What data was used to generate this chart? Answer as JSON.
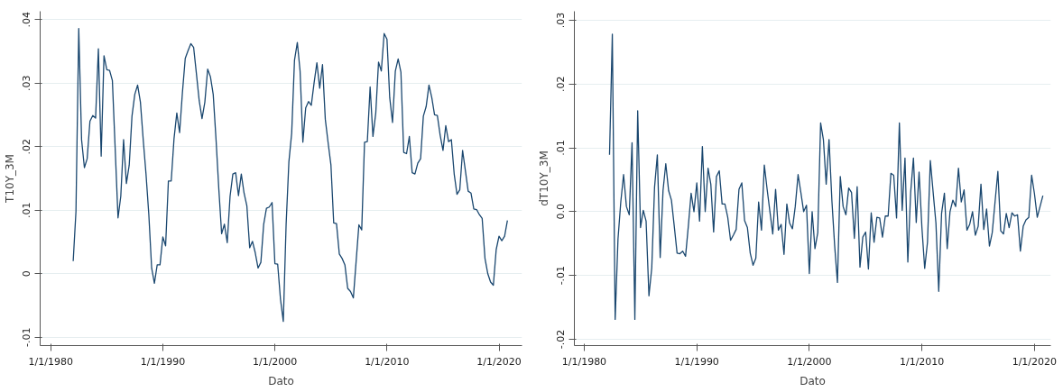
{
  "chart_data": [
    {
      "type": "line",
      "xlabel": "Dato",
      "ylabel": "T10Y_3M",
      "grid": "y",
      "line_style": "solid",
      "xlim": [
        "1979-01-20",
        "2022-01-20"
      ],
      "xticks": [
        {
          "value": "1980-01-01",
          "label": "1/1/1980"
        },
        {
          "value": "1990-01-01",
          "label": "1/1/1990"
        },
        {
          "value": "2000-01-01",
          "label": "1/1/2000"
        },
        {
          "value": "2010-01-01",
          "label": "1/1/2010"
        },
        {
          "value": "2020-01-01",
          "label": "1/1/2020"
        }
      ],
      "ylim": [
        -0.0113,
        0.0413
      ],
      "yticks": [
        {
          "value": -0.01,
          "label": "-.01"
        },
        0,
        {
          "value": 0.01,
          "label": ".01"
        },
        {
          "value": 0.02,
          "label": ".02"
        },
        {
          "value": 0.03,
          "label": ".03"
        },
        {
          "value": 0.04,
          "label": ".04"
        }
      ],
      "series": [
        {
          "color": "#1a476f",
          "x": [
            "1982-01",
            "1982-04",
            "1982-07",
            "1982-10",
            "1983-01",
            "1983-04",
            "1983-07",
            "1983-10",
            "1984-01",
            "1984-04",
            "1984-07",
            "1984-10",
            "1985-01",
            "1985-04",
            "1985-07",
            "1985-10",
            "1986-01",
            "1986-04",
            "1986-07",
            "1986-10",
            "1987-01",
            "1987-04",
            "1987-07",
            "1987-10",
            "1988-01",
            "1988-04",
            "1988-07",
            "1988-10",
            "1989-01",
            "1989-04",
            "1989-07",
            "1989-10",
            "1990-01",
            "1990-04",
            "1990-07",
            "1990-10",
            "1991-01",
            "1991-04",
            "1991-07",
            "1991-10",
            "1992-01",
            "1992-04",
            "1992-07",
            "1992-10",
            "1993-01",
            "1993-04",
            "1993-07",
            "1993-10",
            "1994-01",
            "1994-04",
            "1994-07",
            "1994-10",
            "1995-01",
            "1995-04",
            "1995-07",
            "1995-10",
            "1996-01",
            "1996-04",
            "1996-07",
            "1996-10",
            "1997-01",
            "1997-04",
            "1997-07",
            "1997-10",
            "1998-01",
            "1998-04",
            "1998-07",
            "1998-10",
            "1999-01",
            "1999-04",
            "1999-07",
            "1999-10",
            "2000-01",
            "2000-04",
            "2000-07",
            "2000-10",
            "2001-01",
            "2001-04",
            "2001-07",
            "2001-10",
            "2002-01",
            "2002-04",
            "2002-07",
            "2002-10",
            "2003-01",
            "2003-04",
            "2003-07",
            "2003-10",
            "2004-01",
            "2004-04",
            "2004-07",
            "2004-10",
            "2005-01",
            "2005-04",
            "2005-07",
            "2005-10",
            "2006-01",
            "2006-04",
            "2006-07",
            "2006-10",
            "2007-01",
            "2007-04",
            "2007-07",
            "2007-10",
            "2008-01",
            "2008-04",
            "2008-07",
            "2008-10",
            "2009-01",
            "2009-04",
            "2009-07",
            "2009-10",
            "2010-01",
            "2010-04",
            "2010-07",
            "2010-10",
            "2011-01",
            "2011-04",
            "2011-07",
            "2011-10",
            "2012-01",
            "2012-04",
            "2012-07",
            "2012-10",
            "2013-01",
            "2013-04",
            "2013-07",
            "2013-10",
            "2014-01",
            "2014-04",
            "2014-07",
            "2014-10",
            "2015-01",
            "2015-04",
            "2015-07",
            "2015-10",
            "2016-01",
            "2016-04",
            "2016-07",
            "2016-10",
            "2017-01",
            "2017-04",
            "2017-07",
            "2017-10",
            "2018-01",
            "2018-04",
            "2018-07",
            "2018-10",
            "2019-01",
            "2019-04",
            "2019-07",
            "2019-10",
            "2020-01",
            "2020-04",
            "2020-07",
            "2020-10"
          ],
          "values": [
            0.002,
            0.0098,
            0.0386,
            0.0211,
            0.0167,
            0.0181,
            0.024,
            0.0249,
            0.0245,
            0.0354,
            0.0185,
            0.0343,
            0.0321,
            0.032,
            0.0304,
            0.0196,
            0.0088,
            0.0122,
            0.0211,
            0.0142,
            0.0171,
            0.0248,
            0.0282,
            0.0297,
            0.027,
            0.0211,
            0.0157,
            0.0093,
            0.0009,
            -0.0015,
            0.0014,
            0.0014,
            0.0058,
            0.0044,
            0.0146,
            0.0146,
            0.0213,
            0.0253,
            0.0222,
            0.0285,
            0.0339,
            0.0351,
            0.0362,
            0.0356,
            0.0314,
            0.0272,
            0.0244,
            0.027,
            0.0322,
            0.031,
            0.0282,
            0.0211,
            0.0132,
            0.0063,
            0.0078,
            0.0049,
            0.0122,
            0.0157,
            0.0159,
            0.0123,
            0.0157,
            0.0127,
            0.0107,
            0.0041,
            0.0051,
            0.0033,
            0.0009,
            0.0018,
            0.0078,
            0.0103,
            0.0105,
            0.0112,
            0.0016,
            0.0015,
            -0.004,
            -0.0075,
            0.0078,
            0.0176,
            0.0221,
            0.0336,
            0.0364,
            0.0319,
            0.0207,
            0.0261,
            0.0271,
            0.0265,
            0.03,
            0.0332,
            0.0292,
            0.0329,
            0.0243,
            0.0206,
            0.0171,
            0.008,
            0.0079,
            0.0031,
            0.0024,
            0.0014,
            -0.0023,
            -0.0028,
            -0.0038,
            0.0019,
            0.0077,
            0.0069,
            0.0207,
            0.0208,
            0.0294,
            0.0216,
            0.0253,
            0.0333,
            0.0319,
            0.0378,
            0.0369,
            0.0277,
            0.0238,
            0.0319,
            0.0338,
            0.0317,
            0.0191,
            0.0189,
            0.0216,
            0.0159,
            0.0157,
            0.0174,
            0.0181,
            0.0248,
            0.0263,
            0.0297,
            0.0277,
            0.025,
            0.0249,
            0.0218,
            0.0194,
            0.0233,
            0.0208,
            0.0211,
            0.0157,
            0.0125,
            0.0132,
            0.0194,
            0.0162,
            0.013,
            0.0127,
            0.0102,
            0.0101,
            0.0093,
            0.0087,
            0.0024,
            0.0,
            -0.0013,
            -0.0018,
            0.0038,
            0.0059,
            0.0052,
            0.0059,
            0.0084
          ]
        }
      ]
    },
    {
      "type": "line",
      "xlabel": "Dato",
      "ylabel": "dT10Y_3M",
      "grid": "y",
      "line_style": "solid",
      "xlim": [
        "1979-02-15",
        "2021-06-15"
      ],
      "xticks": [
        {
          "value": "1980-01-01",
          "label": "1/1/1980"
        },
        {
          "value": "1990-01-01",
          "label": "1/1/1990"
        },
        {
          "value": "2000-01-01",
          "label": "1/1/2000"
        },
        {
          "value": "2010-01-01",
          "label": "1/1/2010"
        },
        {
          "value": "2020-01-01",
          "label": "1/1/2020"
        }
      ],
      "ylim": [
        -0.021,
        0.0314
      ],
      "yticks": [
        {
          "value": -0.02,
          "label": "-.02"
        },
        {
          "value": -0.01,
          "label": "-.01"
        },
        {
          "value": 0,
          "label": "0.0"
        },
        {
          "value": 0.01,
          "label": ".01"
        },
        {
          "value": 0.02,
          "label": ".02"
        },
        {
          "value": 0.03,
          "label": ".03"
        }
      ],
      "series": [
        {
          "color": "#1a476f",
          "x": [
            "1982-04",
            "1982-07",
            "1982-10",
            "1983-01",
            "1983-04",
            "1983-07",
            "1983-10",
            "1984-01",
            "1984-04",
            "1984-07",
            "1984-10",
            "1985-01",
            "1985-04",
            "1985-07",
            "1985-10",
            "1986-01",
            "1986-04",
            "1986-07",
            "1986-10",
            "1987-01",
            "1987-04",
            "1987-07",
            "1987-10",
            "1988-01",
            "1988-04",
            "1988-07",
            "1988-10",
            "1989-01",
            "1989-04",
            "1989-07",
            "1989-10",
            "1990-01",
            "1990-04",
            "1990-07",
            "1990-10",
            "1991-01",
            "1991-04",
            "1991-07",
            "1991-10",
            "1992-01",
            "1992-04",
            "1992-07",
            "1992-10",
            "1993-01",
            "1993-04",
            "1993-07",
            "1993-10",
            "1994-01",
            "1994-04",
            "1994-07",
            "1994-10",
            "1995-01",
            "1995-04",
            "1995-07",
            "1995-10",
            "1996-01",
            "1996-04",
            "1996-07",
            "1996-10",
            "1997-01",
            "1997-04",
            "1997-07",
            "1997-10",
            "1998-01",
            "1998-04",
            "1998-07",
            "1998-10",
            "1999-01",
            "1999-04",
            "1999-07",
            "1999-10",
            "2000-01",
            "2000-04",
            "2000-07",
            "2000-10",
            "2001-01",
            "2001-04",
            "2001-07",
            "2001-10",
            "2002-01",
            "2002-04",
            "2002-07",
            "2002-10",
            "2003-01",
            "2003-04",
            "2003-07",
            "2003-10",
            "2004-01",
            "2004-04",
            "2004-07",
            "2004-10",
            "2005-01",
            "2005-04",
            "2005-07",
            "2005-10",
            "2006-01",
            "2006-04",
            "2006-07",
            "2006-10",
            "2007-01",
            "2007-04",
            "2007-07",
            "2007-10",
            "2008-01",
            "2008-04",
            "2008-07",
            "2008-10",
            "2009-01",
            "2009-04",
            "2009-07",
            "2009-10",
            "2010-01",
            "2010-04",
            "2010-07",
            "2010-10",
            "2011-01",
            "2011-04",
            "2011-07",
            "2011-10",
            "2012-01",
            "2012-04",
            "2012-07",
            "2012-10",
            "2013-01",
            "2013-04",
            "2013-07",
            "2013-10",
            "2014-01",
            "2014-04",
            "2014-07",
            "2014-10",
            "2015-01",
            "2015-04",
            "2015-07",
            "2015-10",
            "2016-01",
            "2016-04",
            "2016-07",
            "2016-10",
            "2017-01",
            "2017-04",
            "2017-07",
            "2017-10",
            "2018-01",
            "2018-04",
            "2018-07",
            "2018-10",
            "2019-01",
            "2019-04",
            "2019-07",
            "2019-10",
            "2020-01",
            "2020-04",
            "2020-07",
            "2020-10"
          ],
          "values": [
            0.0089,
            0.0278,
            -0.0169,
            -0.0043,
            0.0015,
            0.0058,
            0.0008,
            -0.0005,
            0.0108,
            -0.0169,
            0.0158,
            -0.0025,
            0.0002,
            -0.0015,
            -0.0132,
            -0.0088,
            0.0038,
            0.0089,
            -0.0072,
            0.0033,
            0.0075,
            0.0033,
            0.0018,
            -0.0023,
            -0.0065,
            -0.0066,
            -0.0062,
            -0.007,
            -0.0023,
            0.0029,
            0.0,
            0.0045,
            -0.0015,
            0.0102,
            0.0,
            0.0068,
            0.0043,
            -0.0032,
            0.0055,
            0.0064,
            0.0012,
            0.0012,
            -0.0009,
            -0.0045,
            -0.0037,
            -0.0028,
            0.0035,
            0.0045,
            -0.0014,
            -0.0025,
            -0.0065,
            -0.0084,
            -0.0073,
            0.0015,
            -0.0029,
            0.0073,
            0.0035,
            0.0,
            -0.0035,
            0.0035,
            -0.0029,
            -0.002,
            -0.0067,
            0.0012,
            -0.0018,
            -0.0027,
            0.0008,
            0.0058,
            0.003,
            0.0,
            0.001,
            -0.0097,
            0.0,
            -0.0058,
            -0.0033,
            0.0139,
            0.0113,
            0.0043,
            0.0113,
            0.0018,
            -0.0053,
            -0.0111,
            0.0055,
            0.0008,
            -0.0005,
            0.0037,
            0.003,
            -0.0042,
            0.0039,
            -0.0087,
            -0.004,
            -0.0032,
            -0.009,
            -0.0002,
            -0.0048,
            -0.0009,
            -0.001,
            -0.004,
            -0.0007,
            -0.0007,
            0.006,
            0.0057,
            -0.001,
            0.0139,
            0.0002,
            0.0084,
            -0.0079,
            0.003,
            0.0084,
            -0.0017,
            0.0062,
            -0.0025,
            -0.0089,
            -0.0048,
            0.008,
            0.003,
            -0.0018,
            -0.0125,
            -0.0003,
            0.0029,
            -0.0058,
            0.0,
            0.0018,
            0.0008,
            0.0068,
            0.0015,
            0.0034,
            -0.0029,
            -0.002,
            0.0,
            -0.0037,
            -0.0023,
            0.0043,
            -0.0028,
            0.0004,
            -0.0054,
            -0.0033,
            0.0015,
            0.0063,
            -0.003,
            -0.0035,
            -0.0003,
            -0.0025,
            -0.0002,
            -0.0007,
            -0.0005,
            -0.0062,
            -0.0023,
            -0.0013,
            -0.0009,
            0.0057,
            0.0028,
            -0.0009,
            0.0008,
            0.0025
          ]
        }
      ]
    }
  ]
}
